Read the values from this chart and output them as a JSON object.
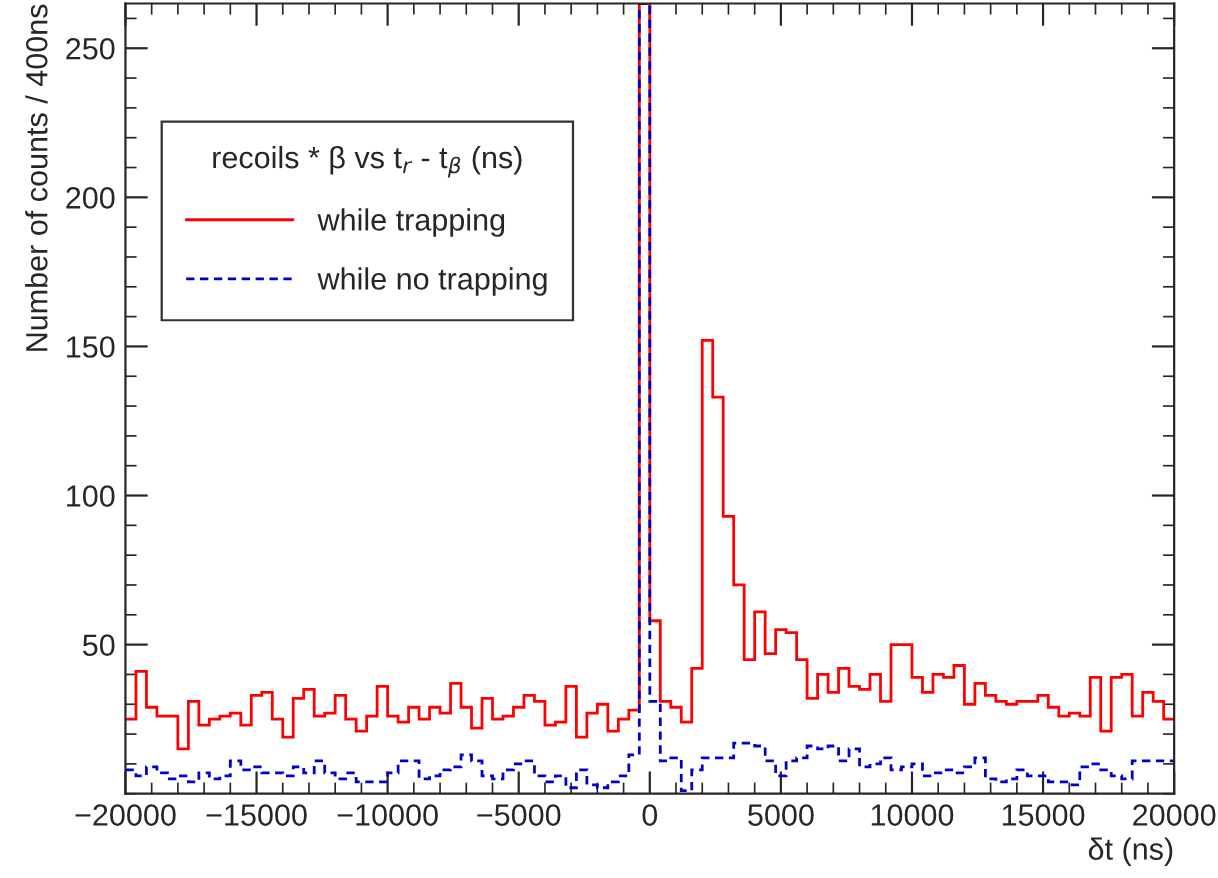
{
  "chart_data": {
    "type": "histogram",
    "xlabel": "δt (ns)",
    "ylabel": "Number of counts / 400ns",
    "legend_title": "recoils * β vs t$_{r}$ - t$_{β}$ (ns)",
    "bins": [
      -20000,
      -19600,
      -19200,
      -18800,
      -18400,
      -18000,
      -17600,
      -17200,
      -16800,
      -16400,
      -16000,
      -15600,
      -15200,
      -14800,
      -14400,
      -14000,
      -13600,
      -13200,
      -12800,
      -12400,
      -12000,
      -11600,
      -11200,
      -10800,
      -10400,
      -10000,
      -9600,
      -9200,
      -8800,
      -8400,
      -8000,
      -7600,
      -7200,
      -6800,
      -6400,
      -6000,
      -5600,
      -5200,
      -4800,
      -4400,
      -4000,
      -3600,
      -3200,
      -2800,
      -2400,
      -2000,
      -1600,
      -1200,
      -800,
      -400,
      0,
      400,
      800,
      1200,
      1600,
      2000,
      2400,
      2800,
      3200,
      3600,
      4000,
      4400,
      4800,
      5200,
      5600,
      6000,
      6400,
      6800,
      7200,
      7600,
      8000,
      8400,
      8800,
      9200,
      9600,
      10000,
      10400,
      10800,
      11200,
      11600,
      12000,
      12400,
      12800,
      13200,
      13600,
      14000,
      14400,
      14800,
      15200,
      15600,
      16000,
      16400,
      16800,
      17200,
      17600,
      18000,
      18400,
      18800,
      19200,
      19600,
      20000
    ],
    "series": [
      {
        "name": "while trapping",
        "color": "#ff0000",
        "line_style": "solid",
        "values": [
          25,
          41,
          29,
          26,
          26,
          15,
          31,
          23,
          25,
          26,
          27,
          23,
          33,
          34,
          25,
          19,
          32,
          35,
          26,
          27,
          33,
          25,
          21,
          26,
          36,
          26,
          24,
          29,
          25,
          29,
          27,
          37,
          29,
          22,
          32,
          25,
          26,
          29,
          33,
          31,
          23,
          24,
          36,
          19,
          27,
          30,
          21,
          25,
          28,
          265,
          58,
          31,
          29,
          24,
          42,
          152,
          133,
          93,
          70,
          45,
          61,
          47,
          55,
          54,
          45,
          32,
          40,
          34,
          42,
          36,
          35,
          40,
          31,
          50,
          50,
          39,
          34,
          40,
          39,
          43,
          30,
          37,
          33,
          31,
          30,
          31,
          31,
          33,
          29,
          26,
          27,
          26,
          39,
          21,
          39,
          40,
          26,
          34,
          31,
          25
        ]
      },
      {
        "name": "while no trapping",
        "color": "#0000cc",
        "line_style": "dashed",
        "values": [
          8,
          6,
          9,
          7,
          5,
          6,
          4,
          7,
          5,
          6,
          11,
          8,
          9,
          7,
          7,
          6,
          9,
          7,
          11,
          7,
          5,
          7,
          4,
          4,
          4,
          7,
          11,
          11,
          5,
          6,
          8,
          9,
          13,
          11,
          6,
          5,
          8,
          10,
          11,
          6,
          4,
          6,
          2,
          8,
          3,
          2,
          4,
          6,
          13,
          265,
          31,
          11,
          12,
          1,
          8,
          12,
          12,
          12,
          17,
          17,
          16,
          11,
          6,
          11,
          12,
          16,
          15,
          16,
          11,
          15,
          9,
          10,
          12,
          8,
          9,
          10,
          6,
          7,
          8,
          7,
          9,
          12,
          5,
          4,
          5,
          8,
          6,
          6,
          4,
          4,
          3,
          9,
          10,
          8,
          6,
          5,
          11,
          11,
          11,
          11
        ]
      }
    ],
    "xlim": [
      -20000,
      20000
    ],
    "xticks": [
      {
        "value": -20000,
        "label": "−20000"
      },
      {
        "value": -15000,
        "label": "−15000"
      },
      {
        "value": -10000,
        "label": "−10000"
      },
      {
        "value": -5000,
        "label": "−5000"
      },
      0,
      5000,
      10000,
      15000,
      20000
    ],
    "ylim": [
      0,
      265
    ],
    "yticks": [
      50,
      100,
      150,
      200,
      250
    ],
    "grid": false,
    "legend": "top left"
  }
}
